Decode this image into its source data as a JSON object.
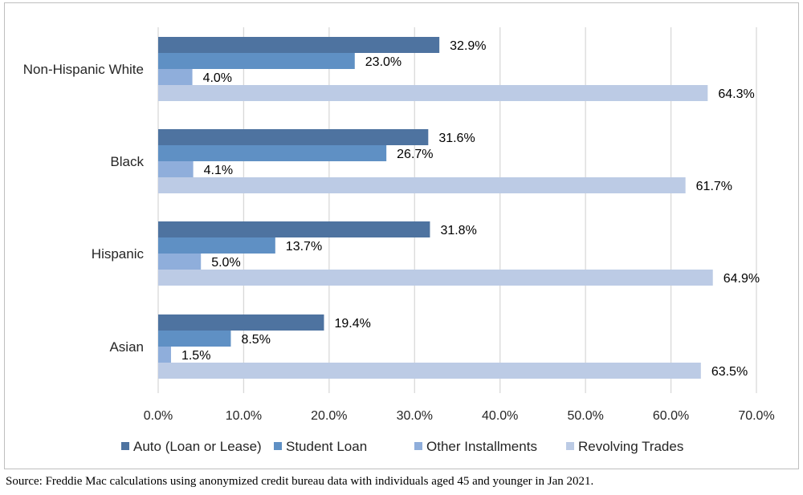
{
  "chart_data": {
    "type": "bar",
    "orientation": "horizontal",
    "categories": [
      "Non-Hispanic White",
      "Black",
      "Hispanic",
      "Asian"
    ],
    "series": [
      {
        "name": "Auto (Loan or Lease)",
        "color": "#4e73a0",
        "values": [
          32.9,
          31.6,
          31.8,
          19.4
        ],
        "labels": [
          "32.9%",
          "31.6%",
          "31.8%",
          "19.4%"
        ]
      },
      {
        "name": "Student Loan",
        "color": "#5f90c4",
        "values": [
          23.0,
          26.7,
          13.7,
          8.5
        ],
        "labels": [
          "23.0%",
          "26.7%",
          "13.7%",
          "8.5%"
        ]
      },
      {
        "name": "Other Installments",
        "color": "#8faedb",
        "values": [
          4.0,
          4.1,
          5.0,
          1.5
        ],
        "labels": [
          "4.0%",
          "4.1%",
          "5.0%",
          "1.5%"
        ]
      },
      {
        "name": "Revolving Trades",
        "color": "#bccbe5",
        "values": [
          64.3,
          61.7,
          64.9,
          63.5
        ],
        "labels": [
          "64.3%",
          "61.7%",
          "64.9%",
          "63.5%"
        ]
      }
    ],
    "xlim": [
      0,
      70
    ],
    "x_ticks": [
      "0.0%",
      "10.0%",
      "20.0%",
      "30.0%",
      "40.0%",
      "50.0%",
      "60.0%",
      "70.0%"
    ],
    "xlabel": "",
    "ylabel": "",
    "title": "",
    "grid": "vertical",
    "legend_position": "bottom"
  },
  "source_note": "Source: Freddie Mac calculations using anonymized credit bureau data with individuals aged 45 and younger in Jan 2021."
}
